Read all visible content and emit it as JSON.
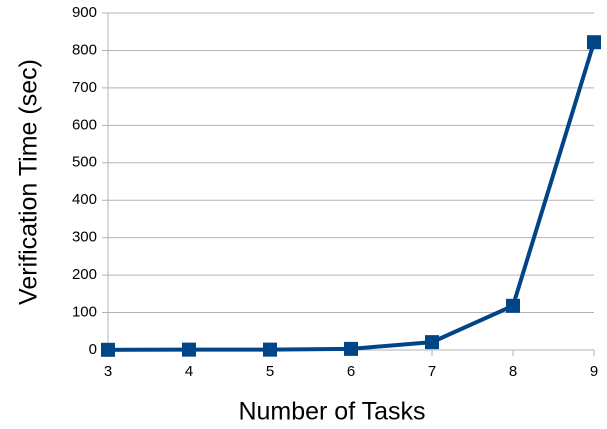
{
  "chart_data": {
    "type": "line",
    "x_label": "Number of Tasks",
    "y_label": "Verification Time (sec)",
    "x": [
      3,
      4,
      5,
      6,
      7,
      8,
      9
    ],
    "series": [
      {
        "name": "Verification Time",
        "color": "#004586",
        "values": [
          0.5,
          1,
          1,
          3,
          21,
          118,
          822
        ]
      }
    ],
    "xlim": [
      3,
      9
    ],
    "xticks": [
      3,
      4,
      5,
      6,
      7,
      8,
      9
    ],
    "ylim": [
      0,
      900
    ],
    "yticks": [
      0,
      100,
      200,
      300,
      400,
      500,
      600,
      700,
      800,
      900
    ],
    "grid": true
  }
}
